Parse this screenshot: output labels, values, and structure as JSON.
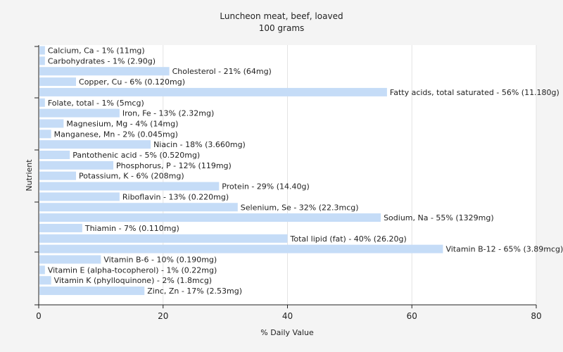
{
  "chart_data": {
    "type": "bar",
    "orientation": "horizontal",
    "title": "Luncheon meat, beef, loaved",
    "subtitle": "100 grams",
    "xlabel": "% Daily Value",
    "ylabel": "Nutrient",
    "xlim": [
      0,
      80
    ],
    "xticks": [
      0,
      20,
      40,
      60,
      80
    ],
    "grid": true,
    "bar_color": "#c5dcf7",
    "categories": [
      "Calcium, Ca",
      "Carbohydrates",
      "Cholesterol",
      "Copper, Cu",
      "Fatty acids, total saturated",
      "Folate, total",
      "Iron, Fe",
      "Magnesium, Mg",
      "Manganese, Mn",
      "Niacin",
      "Pantothenic acid",
      "Phosphorus, P",
      "Potassium, K",
      "Protein",
      "Riboflavin",
      "Selenium, Se",
      "Sodium, Na",
      "Thiamin",
      "Total lipid (fat)",
      "Vitamin B-12",
      "Vitamin B-6",
      "Vitamin E (alpha-tocopherol)",
      "Vitamin K (phylloquinone)",
      "Zinc, Zn"
    ],
    "values": [
      1,
      1,
      21,
      6,
      56,
      1,
      13,
      4,
      2,
      18,
      5,
      12,
      6,
      29,
      13,
      32,
      55,
      7,
      40,
      65,
      10,
      1,
      2,
      17
    ],
    "labels": [
      "Calcium, Ca - 1% (11mg)",
      "Carbohydrates - 1% (2.90g)",
      "Cholesterol - 21% (64mg)",
      "Copper, Cu - 6% (0.120mg)",
      "Fatty acids, total saturated - 56% (11.180g)",
      "Folate, total - 1% (5mcg)",
      "Iron, Fe - 13% (2.32mg)",
      "Magnesium, Mg - 4% (14mg)",
      "Manganese, Mn - 2% (0.045mg)",
      "Niacin - 18% (3.660mg)",
      "Pantothenic acid - 5% (0.520mg)",
      "Phosphorus, P - 12% (119mg)",
      "Potassium, K - 6% (208mg)",
      "Protein - 29% (14.40g)",
      "Riboflavin - 13% (0.220mg)",
      "Selenium, Se - 32% (22.3mcg)",
      "Sodium, Na - 55% (1329mg)",
      "Thiamin - 7% (0.110mg)",
      "Total lipid (fat) - 40% (26.20g)",
      "Vitamin B-12 - 65% (3.89mcg)",
      "Vitamin B-6 - 10% (0.190mg)",
      "Vitamin E (alpha-tocopherol) - 1% (0.22mg)",
      "Vitamin K (phylloquinone) - 2% (1.8mcg)",
      "Zinc, Zn - 17% (2.53mg)"
    ]
  }
}
